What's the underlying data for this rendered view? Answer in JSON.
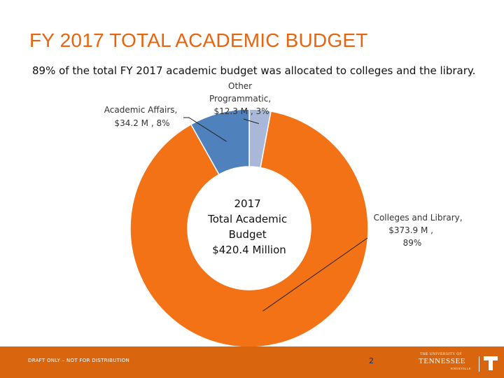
{
  "title": "FY 2017 TOTAL ACADEMIC BUDGET",
  "subtitle": "89% of the total FY 2017 academic budget was allocated to colleges and the library.",
  "chart_data": {
    "type": "pie",
    "donut": true,
    "center_label": [
      "2017",
      "Total Academic",
      "Budget",
      "$420.4 Million"
    ],
    "slices": [
      {
        "name": "Other Programmatic",
        "value": 12.3,
        "percent": 3,
        "color": "#a9b8d8",
        "label_lines": [
          "Other",
          "Programmatic,",
          "$12.3 M , 3%"
        ]
      },
      {
        "name": "Colleges and Library",
        "value": 373.9,
        "percent": 89,
        "color": "#f47216",
        "label_lines": [
          "Colleges and Library,",
          "$373.9 M ,",
          "89%"
        ]
      },
      {
        "name": "Academic Affairs",
        "value": 34.2,
        "percent": 8,
        "color": "#4f81bd",
        "label_lines": [
          "Academic Affairs,",
          "$34.2 M , 8%"
        ]
      }
    ],
    "legend": "none"
  },
  "footer": {
    "draft": "DRAFT ONLY – NOT FOR DISTRIBUTION",
    "page": "2",
    "logo": {
      "line1": "THE UNIVERSITY OF",
      "line2": "TENNESSEE",
      "line3": "KNOXVILLE",
      "mark": "T"
    },
    "color": "#d9650f"
  }
}
